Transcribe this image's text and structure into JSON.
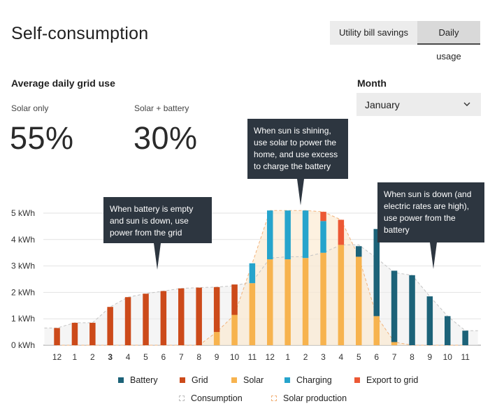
{
  "header": {
    "title": "Self-consumption",
    "tabs": [
      {
        "label": "Utility bill savings",
        "active": false
      },
      {
        "label": "Daily usage",
        "active": true
      }
    ]
  },
  "summary": {
    "heading": "Average daily grid use",
    "solar_only": {
      "label": "Solar only",
      "value": "55%"
    },
    "solar_battery": {
      "label": "Solar + battery",
      "value": "30%"
    }
  },
  "month": {
    "label": "Month",
    "selected": "January",
    "icon": "chevron-down-icon"
  },
  "tooltips": {
    "grid": "When battery is empty and sun is down, use power from the grid",
    "sun": "When sun is shining, use solar to power the home, and use excess to charge the battery",
    "night": "When sun is down (and electric rates are high), use power from the battery"
  },
  "colors": {
    "battery": "#1c6278",
    "grid": "#cc4a1a",
    "solar": "#f7b34e",
    "charging": "#26a4cc",
    "export": "#ec5834",
    "consumption_fill": "#ededed",
    "solar_fill": "#fce8cc",
    "tooltip": "#2d3640"
  },
  "chart_data": {
    "type": "bar",
    "stacked": true,
    "ylabel_unit": "kWh",
    "ylim": [
      0,
      5.3
    ],
    "yticks": [
      "0 kWh",
      "1 kWh",
      "2 kWh",
      "3 kWh",
      "4 kWh",
      "5 kWh"
    ],
    "grid": true,
    "legend_position": "bottom",
    "categories": [
      "12",
      "1",
      "2",
      "3",
      "4",
      "5",
      "6",
      "7",
      "8",
      "9",
      "10",
      "11",
      "12",
      "1",
      "2",
      "3",
      "4",
      "5",
      "6",
      "7",
      "8",
      "9",
      "10",
      "11"
    ],
    "highlighted_category": "3",
    "series": [
      {
        "name": "Battery",
        "values": [
          0,
          0,
          0,
          0,
          0,
          0,
          0,
          0,
          0,
          0,
          0,
          0,
          0,
          0,
          0,
          0,
          0,
          0.4,
          3.3,
          2.7,
          2.65,
          1.85,
          1.1,
          0.55
        ]
      },
      {
        "name": "Grid",
        "values": [
          0.65,
          0.85,
          0.85,
          1.45,
          1.82,
          1.95,
          2.05,
          2.15,
          2.18,
          1.7,
          1.15,
          0,
          0,
          0,
          0,
          0,
          0,
          0,
          0,
          0,
          0,
          0,
          0,
          0
        ]
      },
      {
        "name": "Solar",
        "values": [
          0,
          0,
          0,
          0,
          0,
          0,
          0,
          0,
          0,
          0.5,
          1.15,
          2.35,
          3.25,
          3.25,
          3.3,
          3.5,
          3.8,
          3.35,
          1.1,
          0.12,
          0,
          0,
          0,
          0
        ]
      },
      {
        "name": "Charging",
        "values": [
          0,
          0,
          0,
          0,
          0,
          0,
          0,
          0,
          0,
          0,
          0,
          0.75,
          1.85,
          1.85,
          1.8,
          1.2,
          0,
          0,
          0,
          0,
          0,
          0,
          0,
          0
        ]
      },
      {
        "name": "Export to grid",
        "values": [
          0,
          0,
          0,
          0,
          0,
          0,
          0,
          0,
          0,
          0,
          0,
          0,
          0,
          0,
          0,
          0.35,
          0.95,
          0,
          0,
          0,
          0,
          0,
          0,
          0
        ]
      }
    ],
    "area_series": [
      {
        "name": "Consumption",
        "values": [
          0.65,
          0.85,
          0.85,
          1.45,
          1.82,
          1.95,
          2.05,
          2.15,
          2.18,
          2.2,
          2.25,
          2.4,
          3.3,
          3.35,
          3.35,
          3.5,
          3.8,
          3.8,
          3.3,
          2.75,
          2.65,
          1.85,
          1.1,
          0.55
        ]
      },
      {
        "name": "Solar production",
        "values": [
          0,
          0,
          0,
          0,
          0,
          0,
          0,
          0,
          0,
          0.5,
          1.15,
          3.1,
          5.1,
          5.1,
          5.1,
          5.05,
          4.75,
          3.35,
          1.1,
          0.12,
          0,
          0,
          0,
          0
        ]
      }
    ]
  },
  "legend": [
    {
      "label": "Battery",
      "color": "#1c6278",
      "style": "solid"
    },
    {
      "label": "Grid",
      "color": "#cc4a1a",
      "style": "solid"
    },
    {
      "label": "Solar",
      "color": "#f7b34e",
      "style": "solid"
    },
    {
      "label": "Charging",
      "color": "#26a4cc",
      "style": "solid"
    },
    {
      "label": "Export to grid",
      "color": "#ec5834",
      "style": "solid"
    },
    {
      "label": "Consumption",
      "color": "#bdbdbd",
      "style": "dashed"
    },
    {
      "label": "Solar production",
      "color": "#f2b27a",
      "style": "dashed"
    }
  ]
}
